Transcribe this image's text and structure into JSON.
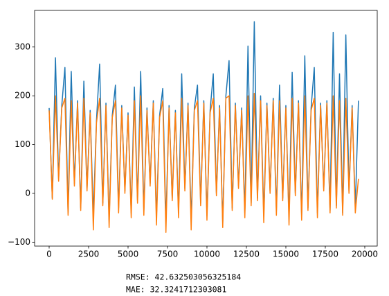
{
  "chart_data": {
    "type": "line",
    "xlim": [
      -921,
      20790
    ],
    "ylim": [
      -108,
      375
    ],
    "xticks": [
      0,
      2500,
      5000,
      7500,
      10000,
      12500,
      15000,
      17500,
      20000
    ],
    "yticks": [
      {
        "value": -100,
        "label": "−100"
      },
      0,
      100,
      200,
      300
    ],
    "annotations": [
      "RMSE: 42.632503056325184",
      "MAE: 32.3241712303081"
    ],
    "x": [
      0,
      200,
      400,
      600,
      800,
      1000,
      1200,
      1400,
      1600,
      1800,
      2000,
      2200,
      2400,
      2600,
      2800,
      3000,
      3200,
      3400,
      3600,
      3800,
      4000,
      4200,
      4400,
      4600,
      4800,
      5000,
      5200,
      5400,
      5600,
      5800,
      6000,
      6200,
      6400,
      6600,
      6800,
      7000,
      7200,
      7400,
      7600,
      7800,
      8000,
      8200,
      8400,
      8600,
      8800,
      9000,
      9200,
      9400,
      9600,
      9800,
      10000,
      10200,
      10400,
      10600,
      10800,
      11000,
      11200,
      11400,
      11600,
      11800,
      12000,
      12200,
      12400,
      12600,
      12800,
      13000,
      13200,
      13400,
      13600,
      13800,
      14000,
      14200,
      14400,
      14600,
      14800,
      15000,
      15200,
      15400,
      15600,
      15800,
      16000,
      16200,
      16400,
      16600,
      16800,
      17000,
      17200,
      17400,
      17600,
      17800,
      18000,
      18200,
      18400,
      18600,
      18800,
      19000,
      19200,
      19400,
      19600
    ],
    "series": [
      {
        "color": "#1f77b4",
        "values": [
          175,
          -10,
          278,
          30,
          180,
          258,
          -40,
          250,
          20,
          190,
          -30,
          230,
          10,
          170,
          -45,
          150,
          265,
          -20,
          185,
          -55,
          160,
          222,
          -30,
          180,
          5,
          165,
          -40,
          218,
          -15,
          250,
          -35,
          175,
          20,
          190,
          -50,
          160,
          215,
          -60,
          180,
          -10,
          170,
          -40,
          245,
          10,
          185,
          -55,
          175,
          222,
          -20,
          190,
          -45,
          170,
          245,
          0,
          180,
          -60,
          200,
          272,
          -30,
          185,
          15,
          175,
          -40,
          302,
          -20,
          352,
          -10,
          200,
          -45,
          185,
          5,
          195,
          -35,
          222,
          -10,
          180,
          -50,
          248,
          0,
          190,
          -45,
          282,
          -30,
          175,
          258,
          -40,
          185,
          10,
          190,
          -35,
          330,
          -25,
          245,
          -40,
          325,
          5,
          180,
          -30,
          190
        ]
      },
      {
        "color": "#ff7f0e",
        "values": [
          170,
          -12,
          200,
          25,
          175,
          195,
          -45,
          190,
          15,
          185,
          -35,
          195,
          5,
          165,
          -75,
          145,
          195,
          -25,
          180,
          -70,
          155,
          190,
          -40,
          175,
          0,
          160,
          -50,
          190,
          -20,
          200,
          -45,
          170,
          15,
          185,
          -65,
          155,
          190,
          -80,
          175,
          -15,
          165,
          -50,
          195,
          5,
          180,
          -75,
          170,
          190,
          -25,
          185,
          -55,
          165,
          195,
          -5,
          175,
          -70,
          195,
          200,
          -35,
          180,
          10,
          170,
          -50,
          200,
          -25,
          205,
          -15,
          190,
          -60,
          180,
          0,
          190,
          -45,
          190,
          -15,
          175,
          -65,
          195,
          -5,
          185,
          -55,
          200,
          -35,
          170,
          195,
          -50,
          180,
          5,
          185,
          -40,
          200,
          -30,
          190,
          -45,
          195,
          0,
          175,
          -40,
          30
        ]
      }
    ]
  }
}
